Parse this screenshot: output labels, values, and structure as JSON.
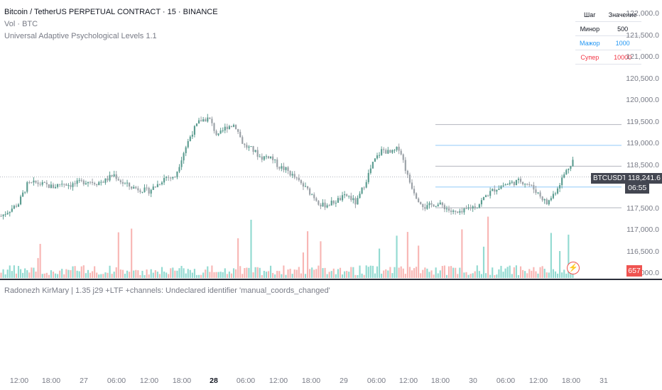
{
  "legend": {
    "title": "Bitcoin / TetherUS PERPETUAL CONTRACT · 15 · BINANCE",
    "volume": "Vol · BTC",
    "indicator": "Universal Adaptive Psychological Levels 1.1"
  },
  "levels_table": {
    "headers": [
      "Шаг",
      "Значение"
    ],
    "rows": [
      {
        "name": "Минор",
        "value": "500",
        "color": "#131722"
      },
      {
        "name": "Мажор",
        "value": "1000",
        "color": "#2196f3"
      },
      {
        "name": "Супер",
        "value": "10000",
        "color": "#f23645"
      }
    ]
  },
  "price_axis": [
    "122,000.0",
    "121,500.0",
    "121,000.0",
    "120,500.0",
    "120,000.0",
    "119,500.0",
    "119,000.0",
    "118,500.0",
    "117,500.0",
    "117,000.0",
    "116,500.0",
    "116,000.0"
  ],
  "current_price": {
    "symbol": "BTCUSDT.P",
    "price": "118,241.6",
    "countdown": "06:55"
  },
  "volume_tag": "657",
  "time_axis": [
    {
      "label": "12:00",
      "bold": false
    },
    {
      "label": "18:00",
      "bold": false
    },
    {
      "label": "27",
      "bold": false
    },
    {
      "label": "06:00",
      "bold": false
    },
    {
      "label": "12:00",
      "bold": false
    },
    {
      "label": "18:00",
      "bold": false
    },
    {
      "label": "28",
      "bold": true
    },
    {
      "label": "06:00",
      "bold": false
    },
    {
      "label": "12:00",
      "bold": false
    },
    {
      "label": "18:00",
      "bold": false
    },
    {
      "label": "29",
      "bold": false
    },
    {
      "label": "06:00",
      "bold": false
    },
    {
      "label": "12:00",
      "bold": false
    },
    {
      "label": "18:00",
      "bold": false
    },
    {
      "label": "30",
      "bold": false
    },
    {
      "label": "06:00",
      "bold": false
    },
    {
      "label": "12:00",
      "bold": false
    },
    {
      "label": "18:00",
      "bold": false
    },
    {
      "label": "31",
      "bold": false
    }
  ],
  "error_message": "Radonezh KirMary | 1.35 j29 +LTF +channels: Undeclared identifier 'manual_coords_changed'",
  "colors": {
    "up": "#26a69a",
    "down": "#ef5350",
    "candle_up": "#5b9c90",
    "candle_down": "#9aa0a6",
    "minor_level": "#b2b5be",
    "major_level": "#90caf9"
  },
  "chart_data": {
    "type": "candlestick",
    "ylim": [
      115900,
      122150
    ],
    "close_series": [
      117300,
      117450,
      117600,
      118050,
      118100,
      118050,
      118000,
      118100,
      118050,
      118100,
      118150,
      118100,
      118150,
      118300,
      118100,
      118000,
      117950,
      117900,
      118050,
      118250,
      118200,
      118800,
      119300,
      119600,
      119650,
      119200,
      119450,
      119500,
      119000,
      118900,
      118700,
      118750,
      118500,
      118400,
      118200,
      118000,
      117800,
      117550,
      117600,
      117700,
      117800,
      117600,
      118100,
      118600,
      118900,
      118800,
      118950,
      118200,
      117750,
      117500,
      117600,
      117550,
      117400,
      117350,
      117500,
      117550,
      117800,
      117950,
      118050,
      118100,
      118150,
      118050,
      117850,
      117600,
      117900,
      118300,
      118650
    ],
    "major_levels": [
      119000,
      118000
    ],
    "minor_levels": [
      119500,
      118500,
      117500
    ],
    "current_price": 118241.6
  }
}
